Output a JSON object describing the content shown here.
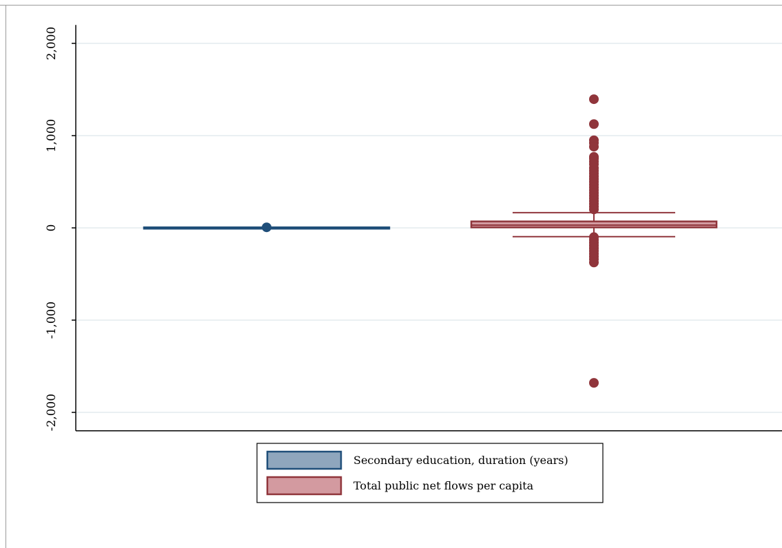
{
  "chart_data": {
    "type": "box",
    "title": "",
    "xlabel": "",
    "ylabel": "",
    "ylim": [
      -2200,
      2200
    ],
    "yticks": [
      2000,
      1000,
      0,
      -1000,
      -2000
    ],
    "ytick_labels": [
      "2,000",
      "1,000",
      "0",
      "-1,000",
      "-2,000"
    ],
    "grid": true,
    "legend_position": "bottom-center",
    "series": [
      {
        "name": "Secondary education, duration (years)",
        "color": "#1f4e79",
        "fill": "#8fa6bd",
        "box": {
          "whisker_low": 4,
          "q1": 5,
          "median": 6,
          "q3": 6,
          "whisker_high": 7
        },
        "outliers": [
          6
        ]
      },
      {
        "name": "Total public net flows per capita",
        "color": "#90353b",
        "fill": "#d39aa0",
        "box": {
          "whisker_low": -95,
          "q1": 5,
          "median": 30,
          "q3": 70,
          "whisker_high": 165
        },
        "outliers": [
          1395,
          1125,
          950,
          920,
          880,
          770,
          750,
          720,
          690,
          650,
          620,
          590,
          560,
          530,
          500,
          470,
          440,
          410,
          380,
          350,
          320,
          290,
          260,
          230,
          200,
          -100,
          -130,
          -160,
          -190,
          -220,
          -250,
          -280,
          -310,
          -340,
          -375,
          -1680
        ]
      }
    ]
  }
}
